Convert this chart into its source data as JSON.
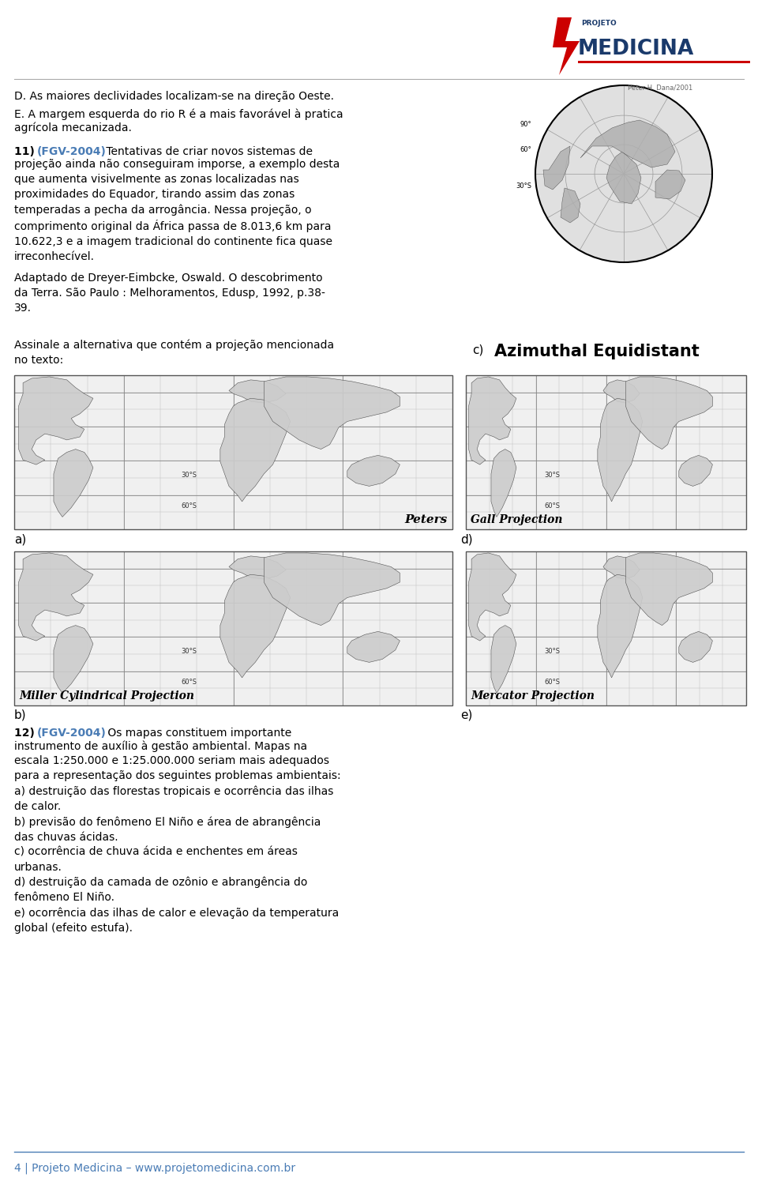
{
  "background_color": "#ffffff",
  "page_width": 9.6,
  "page_height": 14.95,
  "logo_text_projeto": "PROJETO",
  "logo_text_medicina": "MEDICINA",
  "logo_color_red": "#cc0000",
  "logo_color_blue": "#1a3a6b",
  "footer_line_color": "#4a7cb5",
  "footer_text": "4 | Projeto Medicina – www.projetomedicina.com.br",
  "footer_color": "#4a7cb5",
  "header_line_color": "#aaaaaa",
  "body_text_color": "#000000",
  "highlight_color": "#4a7cb5",
  "map_c_title": "Azimuthal Equidistant",
  "map_d_title": "Gall Projection",
  "map_e_title": "Mercator Projection",
  "map_a_title": "Peters",
  "map_b_title": "Miller Cylindrical Projection",
  "prev_text_d": "D. As maiores declividades localizam-se na direção Oeste.",
  "prev_text_e": "E. A margem esquerda do rio R é a mais favorável à pratica\nagrícola mecanizada.",
  "q11_num": "11) ",
  "q11_tag": "(FGV-2004)",
  "q11_body": " Tentativas de criar novos sistemas de\nprojeção ainda não conseguiram imporse, a exemplo desta\nque aumenta visivelmente as zonas localizadas nas\nproximidades do Equador, tirando assim das zonas\ntemperadas a pecha da arrogância. Nessa projeção, o\ncomprimento original da África passa de 8.013,6 km para\n10.622,3 e a imagem tradicional do continente fica quase\nirreconhecível.",
  "attribution": "Adaptado de Dreyer-Eimbcke, Oswald. O descobrimento\nda Terra. São Paulo : Melhoramentos, Edusp, 1992, p.38-\n39.",
  "question_instruction": "Assinale a alternativa que contém a projeção mencionada\nno texto:",
  "q12_num": "12) ",
  "q12_tag": "(FGV-2004)",
  "q12_body": " Os mapas constituem importante instrumento de auxílio à gestão ambiental. Mapas na escala 1:250.000 e 1:25.000.000 seriam mais adequados para a representação dos seguintes problemas ambientais:\na) destruição das florestas tropicais e ocorrência das ilhas de calor.\nb) previsão do fenômeno El Niño e área de abrangência das chuvas ácidas.\nc) ocorrência de chuva ácida e enchentes em áreas urbanas.\nd) destruição da camada de ozônio e abrangência do fenômeno El Niño.\ne) ocorrência das ilhas de calor e elevação da temperatura global (efeito estufa).",
  "map_grid_color": "#bbbbbb",
  "map_border_color": "#555555",
  "continent_color": "#cccccc",
  "continent_edge": "#444444"
}
